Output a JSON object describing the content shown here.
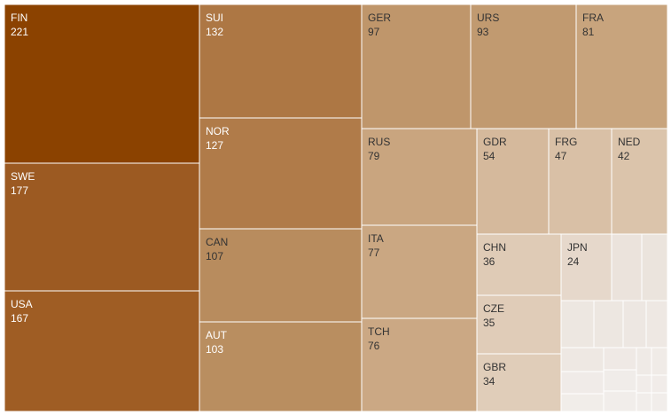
{
  "chart_data": {
    "type": "treemap",
    "title": "",
    "items": [
      {
        "label": "FIN",
        "value": 221,
        "color": "#8b4200",
        "text_color": "#ffffff"
      },
      {
        "label": "SWE",
        "value": 177,
        "color": "#9c5a22",
        "text_color": "#ffffff"
      },
      {
        "label": "USA",
        "value": 167,
        "color": "#9f5d24",
        "text_color": "#ffffff"
      },
      {
        "label": "SUI",
        "value": 132,
        "color": "#ad7744",
        "text_color": "#ffffff"
      },
      {
        "label": "NOR",
        "value": 127,
        "color": "#b07b49",
        "text_color": "#ffffff"
      },
      {
        "label": "CAN",
        "value": 107,
        "color": "#b88c5e",
        "text_color": "#333333"
      },
      {
        "label": "AUT",
        "value": 103,
        "color": "#b98e60",
        "text_color": "#ffffff"
      },
      {
        "label": "GER",
        "value": 97,
        "color": "#bf966b",
        "text_color": "#333333"
      },
      {
        "label": "URS",
        "value": 93,
        "color": "#c19a70",
        "text_color": "#333333"
      },
      {
        "label": "FRA",
        "value": 81,
        "color": "#c8a47d",
        "text_color": "#333333"
      },
      {
        "label": "RUS",
        "value": 79,
        "color": "#c9a57f",
        "text_color": "#333333"
      },
      {
        "label": "ITA",
        "value": 77,
        "color": "#caa782",
        "text_color": "#333333"
      },
      {
        "label": "TCH",
        "value": 76,
        "color": "#cba884",
        "text_color": "#333333"
      },
      {
        "label": "GDR",
        "value": 54,
        "color": "#d5b99c",
        "text_color": "#333333"
      },
      {
        "label": "FRG",
        "value": 47,
        "color": "#d9c0a6",
        "text_color": "#333333"
      },
      {
        "label": "NED",
        "value": 42,
        "color": "#dbc4ab",
        "text_color": "#333333"
      },
      {
        "label": "CHN",
        "value": 36,
        "color": "#dfcbb6",
        "text_color": "#333333"
      },
      {
        "label": "CZE",
        "value": 35,
        "color": "#e0ccb8",
        "text_color": "#333333"
      },
      {
        "label": "GBR",
        "value": 34,
        "color": "#e0cdb9",
        "text_color": "#333333"
      },
      {
        "label": "JPN",
        "value": 24,
        "color": "#e6d8cb",
        "text_color": "#333333"
      },
      {
        "label": "",
        "value": 20,
        "color": "#ebe3dc",
        "text_color": "#333333"
      },
      {
        "label": "",
        "value": 20,
        "color": "#ebe4dd",
        "text_color": "#333333"
      },
      {
        "label": "",
        "value": 18,
        "color": "#ede7e1",
        "text_color": "#333333"
      },
      {
        "label": "",
        "value": 17,
        "color": "#ede7e1",
        "text_color": "#333333"
      },
      {
        "label": "",
        "value": 16,
        "color": "#ede7e2",
        "text_color": "#333333"
      },
      {
        "label": "",
        "value": 15,
        "color": "#eee8e3",
        "text_color": "#333333"
      },
      {
        "label": "",
        "value": 15,
        "color": "#eee8e3",
        "text_color": "#333333"
      },
      {
        "label": "",
        "value": 12,
        "color": "#efe9e5",
        "text_color": "#333333"
      },
      {
        "label": "",
        "value": 11,
        "color": "#efeae6",
        "text_color": "#333333"
      },
      {
        "label": "",
        "value": 9,
        "color": "#f0ebe7",
        "text_color": "#333333"
      },
      {
        "label": "",
        "value": 7,
        "color": "#f0ebe8",
        "text_color": "#333333"
      },
      {
        "label": "",
        "value": 6,
        "color": "#f0ece9",
        "text_color": "#333333"
      },
      {
        "label": "",
        "value": 5,
        "color": "#f1ece9",
        "text_color": "#333333"
      },
      {
        "label": "",
        "value": 5,
        "color": "#f1ece9",
        "text_color": "#333333"
      },
      {
        "label": "",
        "value": 4,
        "color": "#f1ede9",
        "text_color": "#333333"
      },
      {
        "label": "",
        "value": 3,
        "color": "#f1edea",
        "text_color": "#333333"
      },
      {
        "label": "",
        "value": 2,
        "color": "#f1edea",
        "text_color": "#333333"
      },
      {
        "label": "",
        "value": 2,
        "color": "#f1edea",
        "text_color": "#333333"
      }
    ]
  }
}
